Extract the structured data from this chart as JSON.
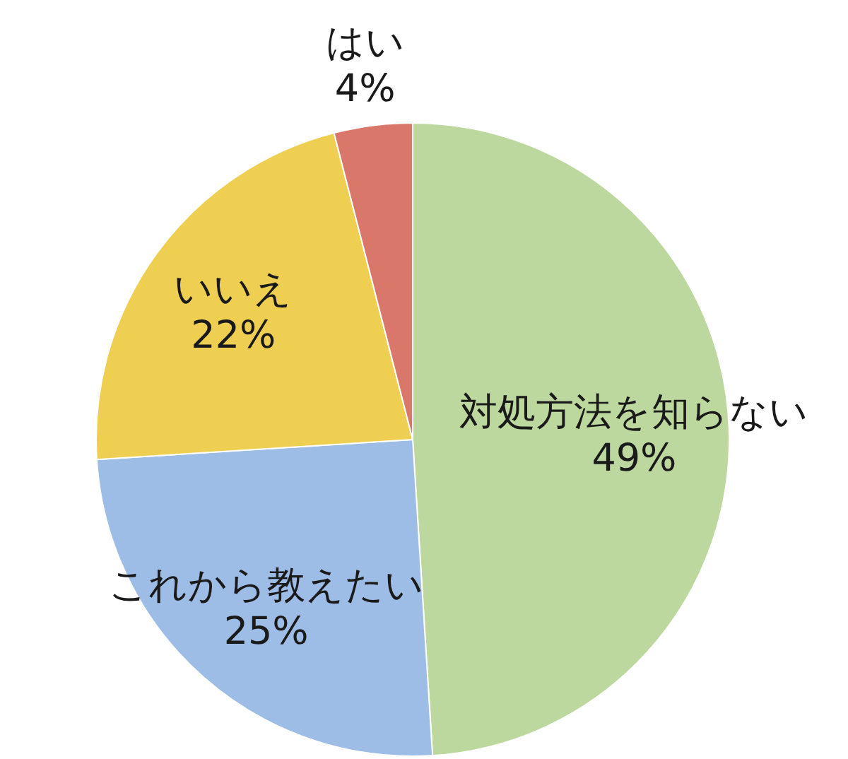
{
  "chart_data": {
    "type": "pie",
    "categories": [
      "対処方法を知らない",
      "これから教えたい",
      "いいえ",
      "はい"
    ],
    "values": [
      49,
      25,
      22,
      4
    ],
    "colors": [
      "#bcd89e",
      "#9dbde6",
      "#efcf52",
      "#d9786a"
    ],
    "value_labels": [
      "49%",
      "25%",
      "22%",
      "4%"
    ]
  }
}
